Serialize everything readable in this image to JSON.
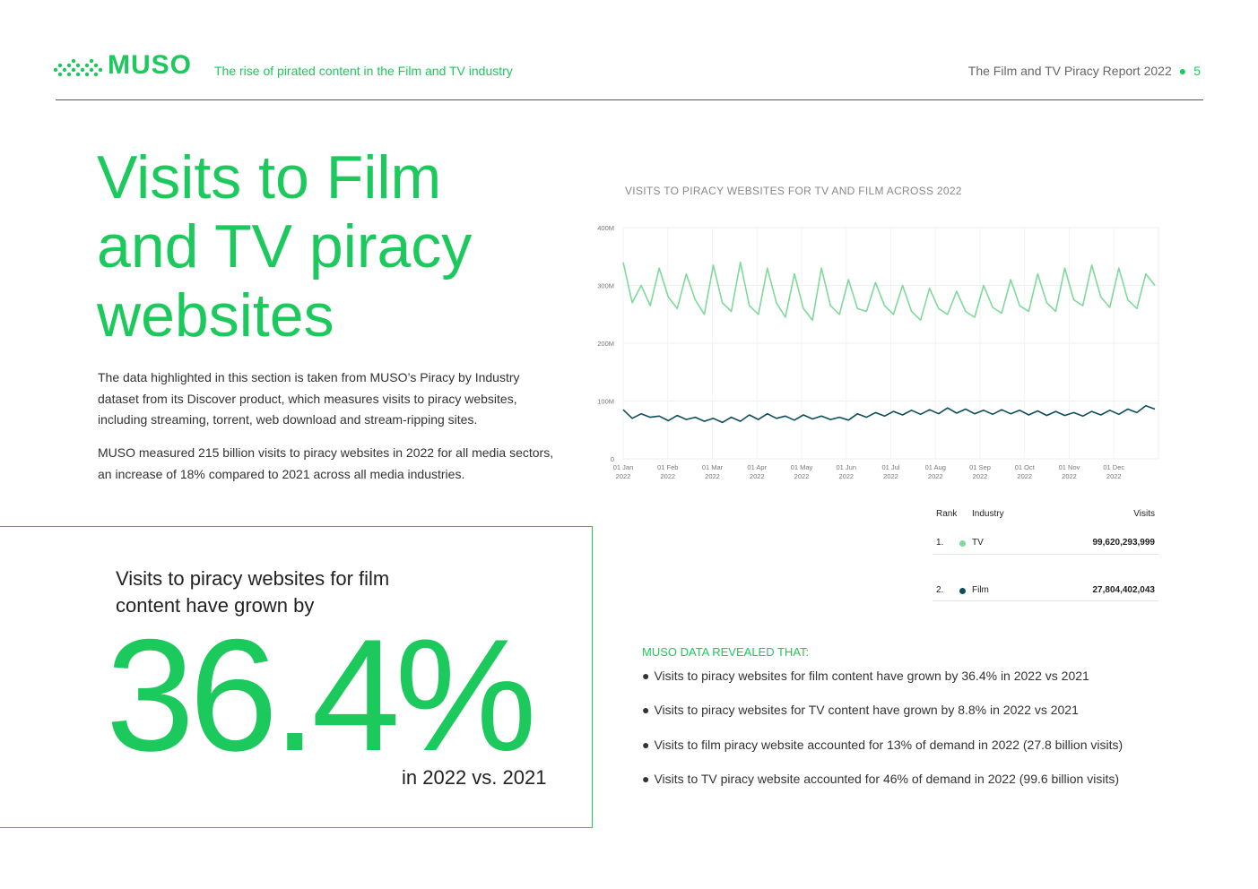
{
  "header": {
    "logo_text": "MUSO",
    "subtitle": "The rise of pirated content in the Film and TV industry",
    "report_title": "The Film and TV Piracy Report 2022",
    "page_number": "5",
    "accent_color": "#1cc95c"
  },
  "hero": {
    "title": "Visits to Film and TV piracy websites",
    "intro_1": "The data highlighted in this section is taken from MUSO’s Piracy by Industry dataset from its Discover product, which measures visits to piracy websites, including streaming, torrent, web download and stream-ripping sites.",
    "intro_2": "MUSO measured  215 billion visits to piracy websites in 2022 for all media sectors,  an increase of 18% compared to 2021 across all media industries."
  },
  "stat": {
    "lead": "Visits to piracy websites for film content have grown by",
    "value": "36.4%",
    "foot": "in 2022 vs. 2021"
  },
  "chart_data": {
    "type": "line",
    "title": "VISITS TO PIRACY WEBSITES FOR TV AND FILM ACROSS 2022",
    "xlabel": "",
    "ylabel": "",
    "ylim": [
      0,
      400000000
    ],
    "y_ticks": [
      "0",
      "100M",
      "200M",
      "300M",
      "400M"
    ],
    "x_ticks": [
      [
        "01 Jan",
        "2022"
      ],
      [
        "01 Feb",
        "2022"
      ],
      [
        "01 Mar",
        "2022"
      ],
      [
        "01 Apr",
        "2022"
      ],
      [
        "01 May",
        "2022"
      ],
      [
        "01 Jun",
        "2022"
      ],
      [
        "01 Jul",
        "2022"
      ],
      [
        "01 Aug",
        "2022"
      ],
      [
        "01 Sep",
        "2022"
      ],
      [
        "01 Oct",
        "2022"
      ],
      [
        "01 Nov",
        "2022"
      ],
      [
        "01 Dec",
        "2022"
      ]
    ],
    "grid": true,
    "series": [
      {
        "name": "TV",
        "color": "#7fd99a",
        "daily_pattern_note": "",
        "values": [
          340000000,
          270000000,
          300000000,
          265000000,
          330000000,
          280000000,
          260000000,
          320000000,
          275000000,
          250000000,
          335000000,
          270000000,
          255000000,
          340000000,
          265000000,
          250000000,
          330000000,
          270000000,
          245000000,
          320000000,
          260000000,
          240000000,
          330000000,
          265000000,
          250000000,
          310000000,
          260000000,
          255000000,
          305000000,
          265000000,
          250000000,
          300000000,
          255000000,
          240000000,
          295000000,
          260000000,
          250000000,
          290000000,
          255000000,
          245000000,
          300000000,
          262000000,
          252000000,
          310000000,
          265000000,
          255000000,
          320000000,
          270000000,
          255000000,
          330000000,
          275000000,
          265000000,
          335000000,
          280000000,
          262000000,
          330000000,
          275000000,
          260000000,
          320000000,
          300000000
        ]
      },
      {
        "name": "Film",
        "color": "#0d4d5c",
        "values": [
          85000000,
          70000000,
          78000000,
          72000000,
          74000000,
          66000000,
          75000000,
          68000000,
          72000000,
          65000000,
          70000000,
          63000000,
          72000000,
          65000000,
          76000000,
          68000000,
          78000000,
          70000000,
          74000000,
          67000000,
          76000000,
          69000000,
          74000000,
          68000000,
          72000000,
          67000000,
          78000000,
          72000000,
          80000000,
          74000000,
          82000000,
          76000000,
          84000000,
          77000000,
          85000000,
          78000000,
          88000000,
          79000000,
          86000000,
          78000000,
          84000000,
          77000000,
          85000000,
          78000000,
          84000000,
          76000000,
          83000000,
          75000000,
          82000000,
          75000000,
          80000000,
          74000000,
          82000000,
          76000000,
          84000000,
          77000000,
          86000000,
          80000000,
          92000000,
          86000000
        ]
      }
    ]
  },
  "table": {
    "headers": {
      "rank": "Rank",
      "industry": "Industry",
      "visits": "Visits"
    },
    "rows": [
      {
        "rank": "1.",
        "industry": "TV",
        "visits": "99,620,293,999",
        "color": "#7fd99a"
      },
      {
        "rank": "2.",
        "industry": "Film",
        "visits": "27,804,402,043",
        "color": "#0d4d5c"
      }
    ]
  },
  "findings": {
    "title": "MUSO DATA REVEALED THAT:",
    "items": [
      "Visits to piracy websites for film content have grown by 36.4% in 2022 vs 2021",
      "Visits to piracy websites for TV content have grown by 8.8% in 2022 vs 2021",
      "Visits to film piracy website accounted for 13% of demand in 2022 (27.8 billion visits)",
      "Visits to TV piracy website accounted for 46% of demand in 2022 (99.6 billion visits)"
    ]
  }
}
